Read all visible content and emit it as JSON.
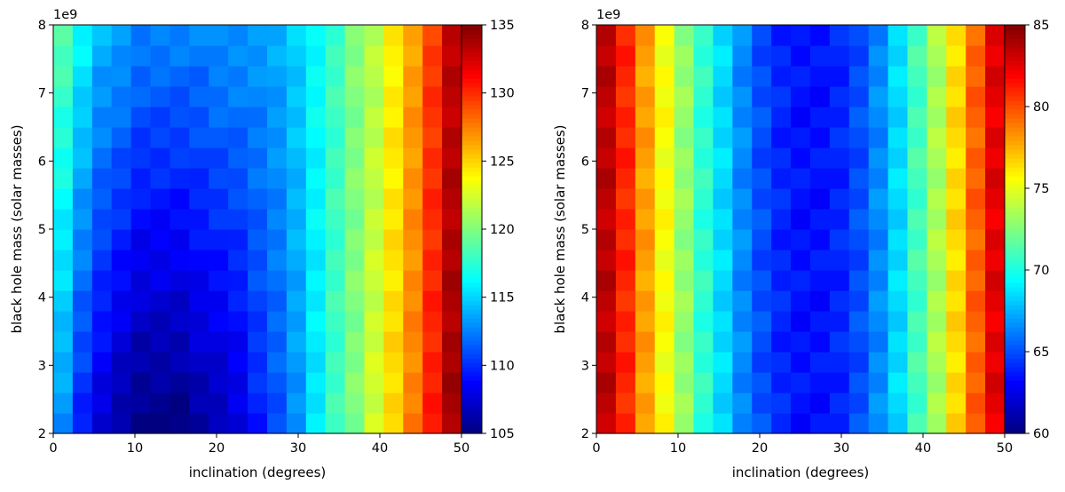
{
  "chart_data": [
    {
      "type": "heatmap",
      "title": "",
      "xlabel": "inclination (degrees)",
      "ylabel": "black hole mass (solar masses)",
      "y_offset_label": "1e9",
      "xlim": [
        0,
        52.5
      ],
      "ylim": [
        2,
        8
      ],
      "x_ticks": [
        "0",
        "10",
        "20",
        "30",
        "40",
        "50"
      ],
      "y_ticks": [
        "2",
        "3",
        "4",
        "5",
        "6",
        "7",
        "8"
      ],
      "colormap": "jet",
      "colorbar": {
        "range": [
          105,
          135
        ],
        "ticks": [
          "105",
          "110",
          "115",
          "120",
          "125",
          "130",
          "135"
        ]
      },
      "grid": false,
      "x_cells": 21,
      "y_cells": 20,
      "cell_width_deg": 2.5,
      "cell_height_mass": 0.3,
      "x_profile": [
        116,
        113,
        111,
        110,
        109,
        109,
        109,
        109.5,
        110,
        110.5,
        111.5,
        112.5,
        114,
        116,
        118,
        120,
        122,
        124.5,
        127,
        130,
        133.5
      ],
      "y_profile": [
        -2.5,
        -2.2,
        -2.0,
        -1.7,
        -1.5,
        -1.2,
        -1.0,
        -0.7,
        -0.5,
        -0.3,
        0,
        0.2,
        0.5,
        0.7,
        1.0,
        1.2,
        1.5,
        1.7,
        2.0,
        2.2
      ],
      "y_gradient": [
        0.3,
        0.35,
        0.35,
        0.4,
        0.4,
        0.4,
        0.4,
        0.35,
        0.35,
        0.3,
        0.2,
        0.15,
        0.1,
        0.05,
        0,
        0,
        -0.05,
        -0.05,
        -0.05,
        -0.05,
        -0.05
      ]
    },
    {
      "type": "heatmap",
      "title": "",
      "xlabel": "inclination (degrees)",
      "ylabel": "black hole mass (solar masses)",
      "y_offset_label": "1e9",
      "xlim": [
        0,
        52.5
      ],
      "ylim": [
        2,
        8
      ],
      "x_ticks": [
        "0",
        "10",
        "20",
        "30",
        "40",
        "50"
      ],
      "y_ticks": [
        "2",
        "3",
        "4",
        "5",
        "6",
        "7",
        "8"
      ],
      "colormap": "jet",
      "colorbar": {
        "range": [
          60,
          85
        ],
        "ticks": [
          "60",
          "65",
          "70",
          "75",
          "80",
          "85"
        ]
      },
      "grid": false,
      "x_cells": 21,
      "y_cells": 20,
      "cell_width_deg": 2.5,
      "cell_height_mass": 0.3,
      "x_profile": [
        83.5,
        81,
        78,
        75.5,
        73,
        70.5,
        68.5,
        66.5,
        65,
        64,
        63.5,
        63.5,
        64,
        65,
        66.5,
        68.5,
        71,
        73.5,
        76.5,
        79.5,
        82.5
      ],
      "y_profile": [
        0.5,
        0.4,
        0.3,
        0.2,
        0.1,
        0,
        0,
        -0.1,
        -0.1,
        -0.2,
        -0.2,
        -0.1,
        -0.1,
        0,
        0,
        0.1,
        0.2,
        0.3,
        0.4,
        0.5
      ],
      "y_gradient": [
        0,
        0,
        0,
        0,
        0,
        0,
        0,
        0,
        0,
        0,
        0,
        0,
        0,
        0,
        0,
        0,
        0,
        0,
        0,
        0,
        0
      ]
    }
  ]
}
